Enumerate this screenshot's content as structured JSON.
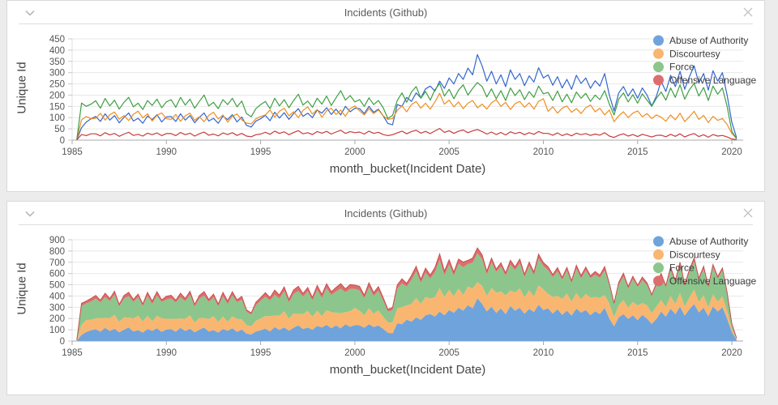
{
  "ui": {
    "background_color": "#ececec",
    "panel_border_color": "#d9d9d9",
    "icons": {
      "collapse": "chevron-down-icon",
      "close": "close-icon"
    }
  },
  "panels": [
    {
      "title": "Incidents (Github)"
    },
    {
      "title": "Incidents (Github)"
    }
  ],
  "chart_data": {
    "x": {
      "field": "month_bucket(Incident Date)",
      "start": 1985.25,
      "step": 0.25
    },
    "series": [
      {
        "name": "Abuse of Authority",
        "line_color": "#3366cc",
        "fill_color": "#6fa3dc",
        "values": [
          2,
          55,
          80,
          95,
          105,
          83,
          117,
          89,
          109,
          77,
          101,
          121,
          85,
          97,
          75,
          107,
          91,
          113,
          81,
          103,
          105,
          83,
          117,
          89,
          109,
          77,
          101,
          121,
          85,
          97,
          75,
          107,
          91,
          113,
          81,
          103,
          66,
          58,
          85,
          95,
          110,
          86,
          124,
          98,
          122,
          92,
          118,
          140,
          106,
          120,
          100,
          134,
          120,
          144,
          114,
          138,
          112,
          150,
          126,
          142,
          140,
          118,
          150,
          124,
          138,
          108,
          74,
          68,
          158,
          150,
          190,
          172,
          210,
          188,
          228,
          240,
          218,
          262,
          230,
          276,
          250,
          296,
          270,
          320,
          290,
          380,
          330,
          262,
          306,
          250,
          290,
          238,
          312,
          270,
          296,
          242,
          286,
          258,
          322,
          276,
          290,
          244,
          282,
          232,
          270,
          226,
          288,
          252,
          276,
          230,
          264,
          240,
          296,
          200,
          130,
          210,
          238,
          196,
          228,
          186,
          232,
          200,
          152,
          196,
          262,
          216,
          288,
          238,
          306,
          226,
          282,
          330,
          254,
          296,
          222,
          308,
          262,
          300,
          200,
          80,
          10
        ]
      },
      {
        "name": "Discourtesy",
        "line_color": "#ef8e1f",
        "fill_color": "#f9b671",
        "values": [
          2,
          90,
          105,
          95,
          97,
          119,
          89,
          113,
          125,
          93,
          109,
          87,
          115,
          129,
          99,
          117,
          85,
          111,
          121,
          95,
          92,
          114,
          84,
          108,
          120,
          88,
          104,
          82,
          110,
          124,
          94,
          112,
          80,
          106,
          116,
          90,
          76,
          72,
          95,
          105,
          112,
          134,
          102,
          128,
          142,
          108,
          126,
          100,
          132,
          148,
          116,
          136,
          102,
          130,
          142,
          114,
          134,
          106,
          140,
          152,
          130,
          112,
          140,
          118,
          134,
          108,
          92,
          96,
          132,
          152,
          126,
          158,
          172,
          142,
          164,
          138,
          170,
          208,
          160,
          178,
          148,
          170,
          140,
          164,
          176,
          144,
          160,
          138,
          166,
          180,
          150,
          168,
          136,
          162,
          172,
          146,
          166,
          138,
          172,
          184,
          128,
          148,
          120,
          142,
          152,
          124,
          140,
          118,
          144,
          156,
          126,
          142,
          112,
          134,
          82,
          108,
          126,
          100,
          120,
          130,
          104,
          118,
          96,
          112,
          102,
          84,
          112,
          90,
          120,
          82,
          104,
          128,
          92,
          110,
          78,
          106,
          88,
          96,
          70,
          30,
          8
        ]
      },
      {
        "name": "Force",
        "line_color": "#3f9e42",
        "fill_color": "#8cc68c",
        "values": [
          3,
          165,
          150,
          160,
          175,
          142,
          185,
          152,
          178,
          138,
          168,
          190,
          148,
          164,
          136,
          176,
          154,
          182,
          144,
          170,
          180,
          146,
          190,
          156,
          182,
          142,
          172,
          200,
          152,
          168,
          140,
          180,
          158,
          186,
          148,
          174,
          118,
          104,
          140,
          158,
          172,
          140,
          186,
          152,
          180,
          144,
          176,
          204,
          156,
          174,
          146,
          186,
          160,
          196,
          154,
          188,
          220,
          178,
          198,
          170,
          180,
          150,
          188,
          158,
          176,
          144,
          96,
          110,
          176,
          210,
          168,
          214,
          238,
          186,
          216,
          178,
          224,
          252,
          196,
          226,
          184,
          222,
          246,
          200,
          230,
          256,
          238,
          192,
          228,
          184,
          220,
          176,
          232,
          198,
          224,
          180,
          216,
          190,
          240,
          206,
          212,
          176,
          218,
          170,
          204,
          166,
          214,
          186,
          208,
          172,
          200,
          180,
          220,
          160,
          112,
          182,
          210,
          170,
          202,
          164,
          206,
          178,
          150,
          186,
          214,
          178,
          232,
          190,
          246,
          182,
          224,
          252,
          196,
          234,
          176,
          240,
          204,
          232,
          150,
          40,
          5
        ]
      },
      {
        "name": "Offensive Language",
        "line_color": "#c93a3a",
        "fill_color": "#dd6e6e",
        "values": [
          1,
          25,
          20,
          28,
          28,
          19,
          33,
          23,
          30,
          17,
          27,
          35,
          21,
          26,
          18,
          31,
          24,
          32,
          20,
          29,
          29,
          20,
          34,
          24,
          31,
          18,
          28,
          36,
          22,
          27,
          19,
          32,
          25,
          33,
          21,
          30,
          18,
          15,
          24,
          27,
          35,
          26,
          40,
          30,
          37,
          24,
          34,
          42,
          28,
          33,
          25,
          38,
          31,
          39,
          27,
          36,
          44,
          30,
          38,
          33,
          36,
          27,
          40,
          30,
          35,
          25,
          20,
          24,
          32,
          40,
          28,
          38,
          44,
          31,
          39,
          29,
          41,
          52,
          34,
          42,
          30,
          40,
          45,
          33,
          41,
          47,
          38,
          27,
          36,
          25,
          34,
          23,
          37,
          29,
          35,
          24,
          33,
          26,
          38,
          30,
          30,
          22,
          32,
          20,
          28,
          19,
          31,
          24,
          29,
          21,
          27,
          22,
          33,
          18,
          12,
          22,
          28,
          18,
          25,
          16,
          26,
          20,
          14,
          21,
          22,
          15,
          26,
          17,
          28,
          14,
          23,
          29,
          16,
          24,
          13,
          25,
          18,
          21,
          14,
          5,
          2
        ]
      }
    ],
    "charts": [
      {
        "type": "line",
        "title": "Incidents (Github)",
        "xlabel": "month_bucket(Incident Date)",
        "ylabel": "Unique Id",
        "xlim": [
          1985,
          2020.6
        ],
        "ylim": [
          0,
          450
        ],
        "xticks": [
          1985,
          1990,
          1995,
          2000,
          2005,
          2010,
          2015,
          2020
        ],
        "yticks": [
          0,
          50,
          100,
          150,
          200,
          250,
          300,
          350,
          400,
          450
        ],
        "grid": true,
        "legend_position": "top-right",
        "legend": [
          "Abuse of Authority",
          "Discourtesy",
          "Force",
          "Offensive Language"
        ]
      },
      {
        "type": "area",
        "stacked": true,
        "title": "Incidents (Github)",
        "xlabel": "month_bucket(Incident Date)",
        "ylabel": "Unique Id",
        "xlim": [
          1985,
          2020.6
        ],
        "ylim": [
          0,
          900
        ],
        "xticks": [
          1985,
          1990,
          1995,
          2000,
          2005,
          2010,
          2015,
          2020
        ],
        "yticks": [
          0,
          100,
          200,
          300,
          400,
          500,
          600,
          700,
          800,
          900
        ],
        "grid": true,
        "legend_position": "top-right",
        "legend": [
          "Abuse of Authority",
          "Discourtesy",
          "Force",
          "Offensive Language"
        ]
      }
    ]
  }
}
